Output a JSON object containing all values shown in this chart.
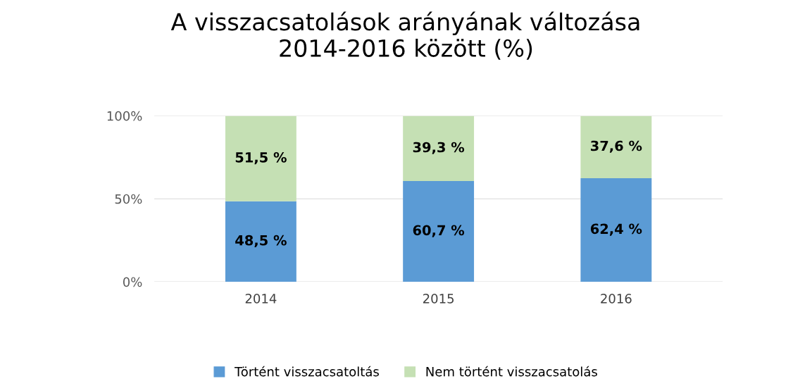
{
  "chart_data": {
    "type": "bar",
    "title": "A visszacsatolások arányának változása\n2014-2016 között (%)",
    "categories": [
      "2014",
      "2015",
      "2016"
    ],
    "stacked": true,
    "series": [
      {
        "name": "Történt visszacsatoltás",
        "color": "#5b9bd5",
        "values": [
          48.5,
          60.7,
          62.4
        ],
        "value_labels": [
          "48,5 %",
          "60,7 %",
          "62,4 %"
        ]
      },
      {
        "name": "Nem történt visszacsatolás",
        "color": "#c5e0b4",
        "values": [
          51.5,
          39.3,
          37.6
        ],
        "value_labels": [
          "51,5 %",
          "39,3 %",
          "37,6 %"
        ]
      }
    ],
    "ylim": [
      0,
      100
    ],
    "yticks": [
      {
        "value": 0,
        "label": "0%"
      },
      {
        "value": 50,
        "label": "50%"
      },
      {
        "value": 100,
        "label": "100%"
      }
    ],
    "grid": "y",
    "legend": "bottom"
  }
}
